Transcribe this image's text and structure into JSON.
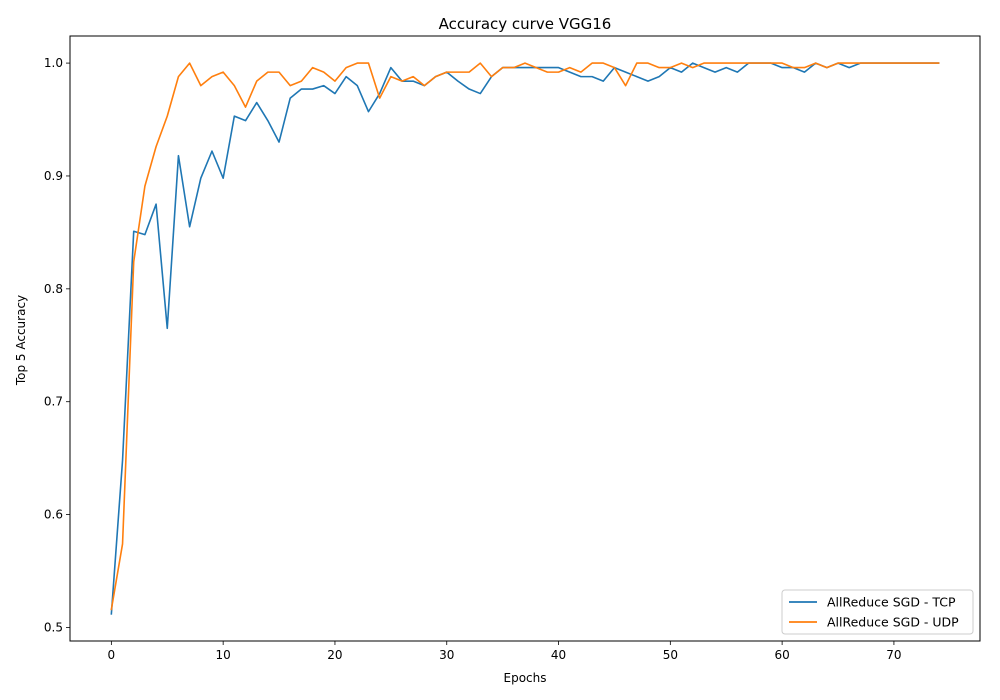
{
  "chart_data": {
    "type": "line",
    "title": "Accuracy curve VGG16",
    "xlabel": "Epochs",
    "ylabel": "Top 5 Accuracy",
    "xlim": [
      -3.7,
      77.7
    ],
    "ylim": [
      0.488,
      1.024
    ],
    "xticks": [
      0,
      10,
      20,
      30,
      40,
      50,
      60,
      70
    ],
    "yticks": [
      0.5,
      0.6,
      0.7,
      0.8,
      0.9,
      1.0
    ],
    "ytick_labels": [
      "0.5",
      "0.6",
      "0.7",
      "0.8",
      "0.9",
      "1.0"
    ],
    "grid": false,
    "legend_position": "lower-right",
    "series": [
      {
        "name": "AllReduce SGD - TCP",
        "color": "#1f77b4",
        "values": [
          0.512,
          0.648,
          0.851,
          0.848,
          0.875,
          0.765,
          0.918,
          0.855,
          0.898,
          0.922,
          0.898,
          0.953,
          0.949,
          0.965,
          0.949,
          0.93,
          0.969,
          0.977,
          0.977,
          0.98,
          0.973,
          0.988,
          0.98,
          0.957,
          0.973,
          0.996,
          0.984,
          0.984,
          0.98,
          0.988,
          0.992,
          0.984,
          0.977,
          0.973,
          0.988,
          0.996,
          0.996,
          0.996,
          0.996,
          0.996,
          0.996,
          0.992,
          0.988,
          0.988,
          0.984,
          0.996,
          0.992,
          0.988,
          0.984,
          0.988,
          0.996,
          0.992,
          1.0,
          0.996,
          0.992,
          0.996,
          0.992,
          1.0,
          1.0,
          1.0,
          0.996,
          0.996,
          0.992,
          1.0,
          0.996,
          1.0,
          0.996,
          1.0,
          1.0,
          1.0,
          1.0,
          1.0,
          1.0,
          1.0,
          1.0
        ]
      },
      {
        "name": "AllReduce SGD - UDP",
        "color": "#ff7f0e",
        "values": [
          0.516,
          0.574,
          0.824,
          0.891,
          0.926,
          0.953,
          0.988,
          1.0,
          0.98,
          0.988,
          0.992,
          0.98,
          0.961,
          0.984,
          0.992,
          0.992,
          0.98,
          0.984,
          0.996,
          0.992,
          0.984,
          0.996,
          1.0,
          1.0,
          0.969,
          0.988,
          0.984,
          0.988,
          0.98,
          0.988,
          0.992,
          0.992,
          0.992,
          1.0,
          0.988,
          0.996,
          0.996,
          1.0,
          0.996,
          0.992,
          0.992,
          0.996,
          0.992,
          1.0,
          1.0,
          0.996,
          0.98,
          1.0,
          1.0,
          0.996,
          0.996,
          1.0,
          0.996,
          1.0,
          1.0,
          1.0,
          1.0,
          1.0,
          1.0,
          1.0,
          1.0,
          0.996,
          0.996,
          1.0,
          0.996,
          1.0,
          1.0,
          1.0,
          1.0,
          1.0,
          1.0,
          1.0,
          1.0,
          1.0,
          1.0
        ]
      }
    ]
  }
}
